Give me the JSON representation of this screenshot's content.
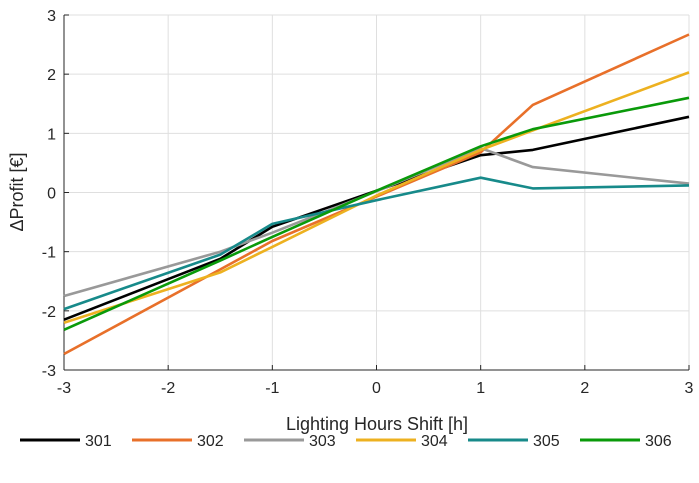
{
  "chart_data": {
    "type": "line",
    "xlabel": "Lighting Hours Shift [h]",
    "ylabel": "ΔProfit [€]",
    "xlim": [
      -3,
      3
    ],
    "ylim": [
      -3,
      3
    ],
    "xticks": [
      -3,
      -2,
      -1,
      0,
      1,
      2,
      3
    ],
    "yticks": [
      -3,
      -2,
      -1,
      0,
      1,
      2,
      3
    ],
    "grid": true,
    "legend_position": "bottom",
    "x": [
      -3,
      -1.5,
      -1,
      0,
      1,
      1.5,
      3
    ],
    "series": [
      {
        "name": "301",
        "color": "#000000",
        "values": [
          -2.15,
          -1.12,
          -0.58,
          0.03,
          0.63,
          0.72,
          1.28
        ]
      },
      {
        "name": "302",
        "color": "#E8702A",
        "values": [
          -2.73,
          -1.3,
          -0.82,
          -0.07,
          0.68,
          1.48,
          2.67
        ]
      },
      {
        "name": "303",
        "color": "#999999",
        "values": [
          -1.75,
          -1.0,
          -0.68,
          0.02,
          0.75,
          0.43,
          0.15
        ]
      },
      {
        "name": "304",
        "color": "#EDB120",
        "values": [
          -2.2,
          -1.35,
          -0.92,
          -0.05,
          0.72,
          1.05,
          2.03
        ]
      },
      {
        "name": "305",
        "color": "#178A8A",
        "values": [
          -1.97,
          -1.05,
          -0.53,
          -0.13,
          0.25,
          0.07,
          0.12
        ]
      },
      {
        "name": "306",
        "color": "#0A9A0A",
        "values": [
          -2.32,
          -1.15,
          -0.75,
          0.03,
          0.78,
          1.07,
          1.6
        ]
      }
    ]
  }
}
